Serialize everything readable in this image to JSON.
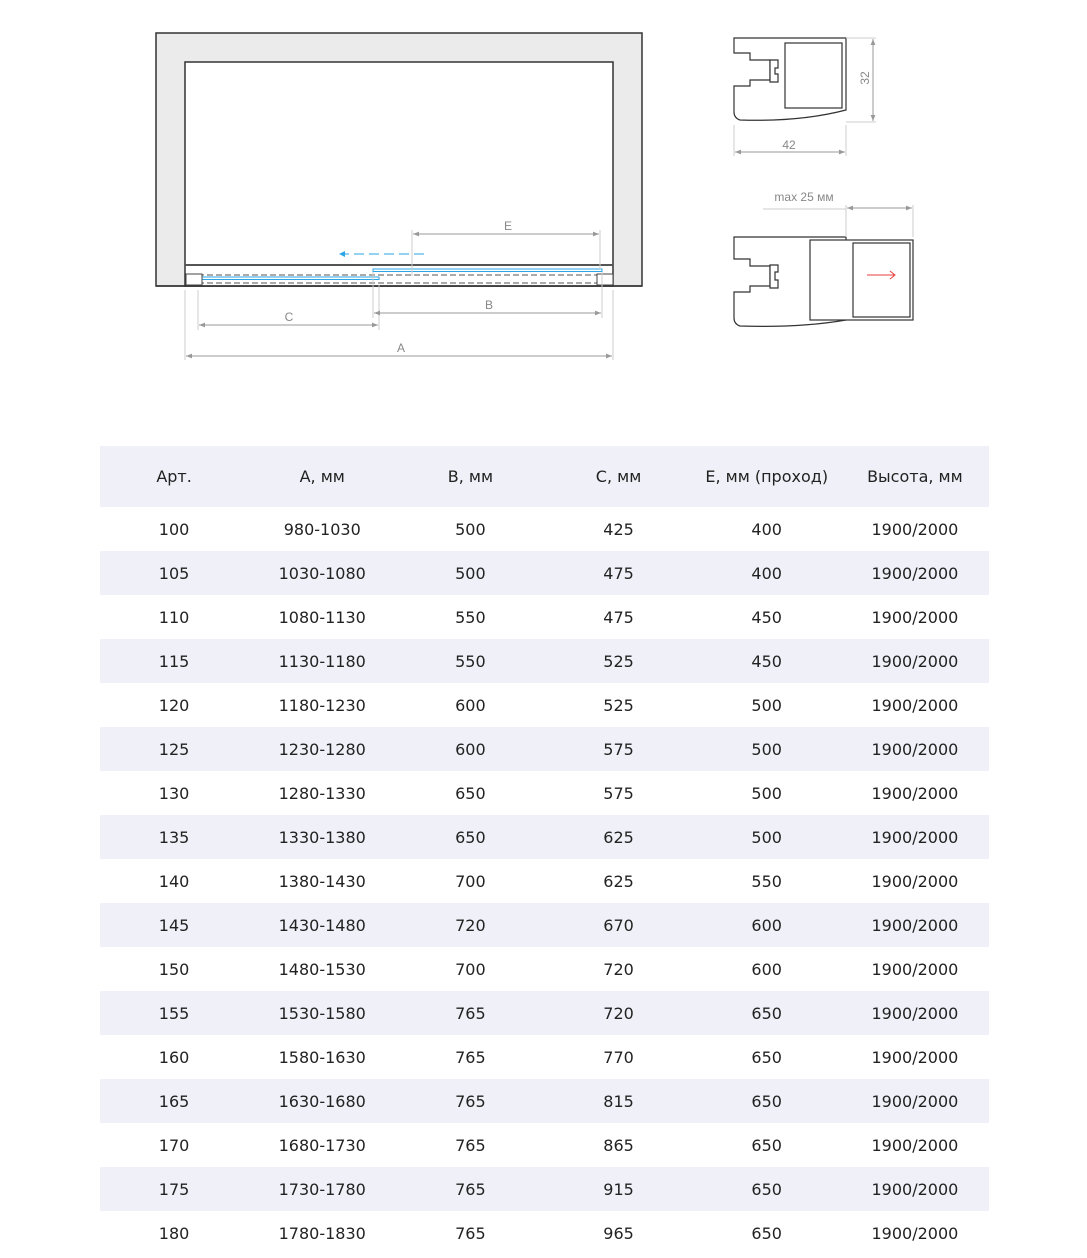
{
  "diagram": {
    "labels": {
      "A": "A",
      "B": "B",
      "C": "C",
      "E": "E"
    },
    "profile_width": "42",
    "profile_height": "32",
    "adjust_label": "max 25 мм",
    "colors": {
      "glass": "#2aa6e6",
      "arrow_open": "#2aa6e6",
      "arrow_adjust": "#e83c3c",
      "dimension": "#999999",
      "wall": "#ebebeb"
    }
  },
  "table": {
    "headers": [
      "Арт.",
      "A, мм",
      "B, мм",
      "C, мм",
      "E, мм (проход)",
      "Высота, мм"
    ],
    "rows": [
      [
        "100",
        "980-1030",
        "500",
        "425",
        "400",
        "1900/2000"
      ],
      [
        "105",
        "1030-1080",
        "500",
        "475",
        "400",
        "1900/2000"
      ],
      [
        "110",
        "1080-1130",
        "550",
        "475",
        "450",
        "1900/2000"
      ],
      [
        "115",
        "1130-1180",
        "550",
        "525",
        "450",
        "1900/2000"
      ],
      [
        "120",
        "1180-1230",
        "600",
        "525",
        "500",
        "1900/2000"
      ],
      [
        "125",
        "1230-1280",
        "600",
        "575",
        "500",
        "1900/2000"
      ],
      [
        "130",
        "1280-1330",
        "650",
        "575",
        "500",
        "1900/2000"
      ],
      [
        "135",
        "1330-1380",
        "650",
        "625",
        "500",
        "1900/2000"
      ],
      [
        "140",
        "1380-1430",
        "700",
        "625",
        "550",
        "1900/2000"
      ],
      [
        "145",
        "1430-1480",
        "720",
        "670",
        "600",
        "1900/2000"
      ],
      [
        "150",
        "1480-1530",
        "700",
        "720",
        "600",
        "1900/2000"
      ],
      [
        "155",
        "1530-1580",
        "765",
        "720",
        "650",
        "1900/2000"
      ],
      [
        "160",
        "1580-1630",
        "765",
        "770",
        "650",
        "1900/2000"
      ],
      [
        "165",
        "1630-1680",
        "765",
        "815",
        "650",
        "1900/2000"
      ],
      [
        "170",
        "1680-1730",
        "765",
        "865",
        "650",
        "1900/2000"
      ],
      [
        "175",
        "1730-1780",
        "765",
        "915",
        "650",
        "1900/2000"
      ],
      [
        "180",
        "1780-1830",
        "765",
        "965",
        "650",
        "1900/2000"
      ]
    ]
  }
}
